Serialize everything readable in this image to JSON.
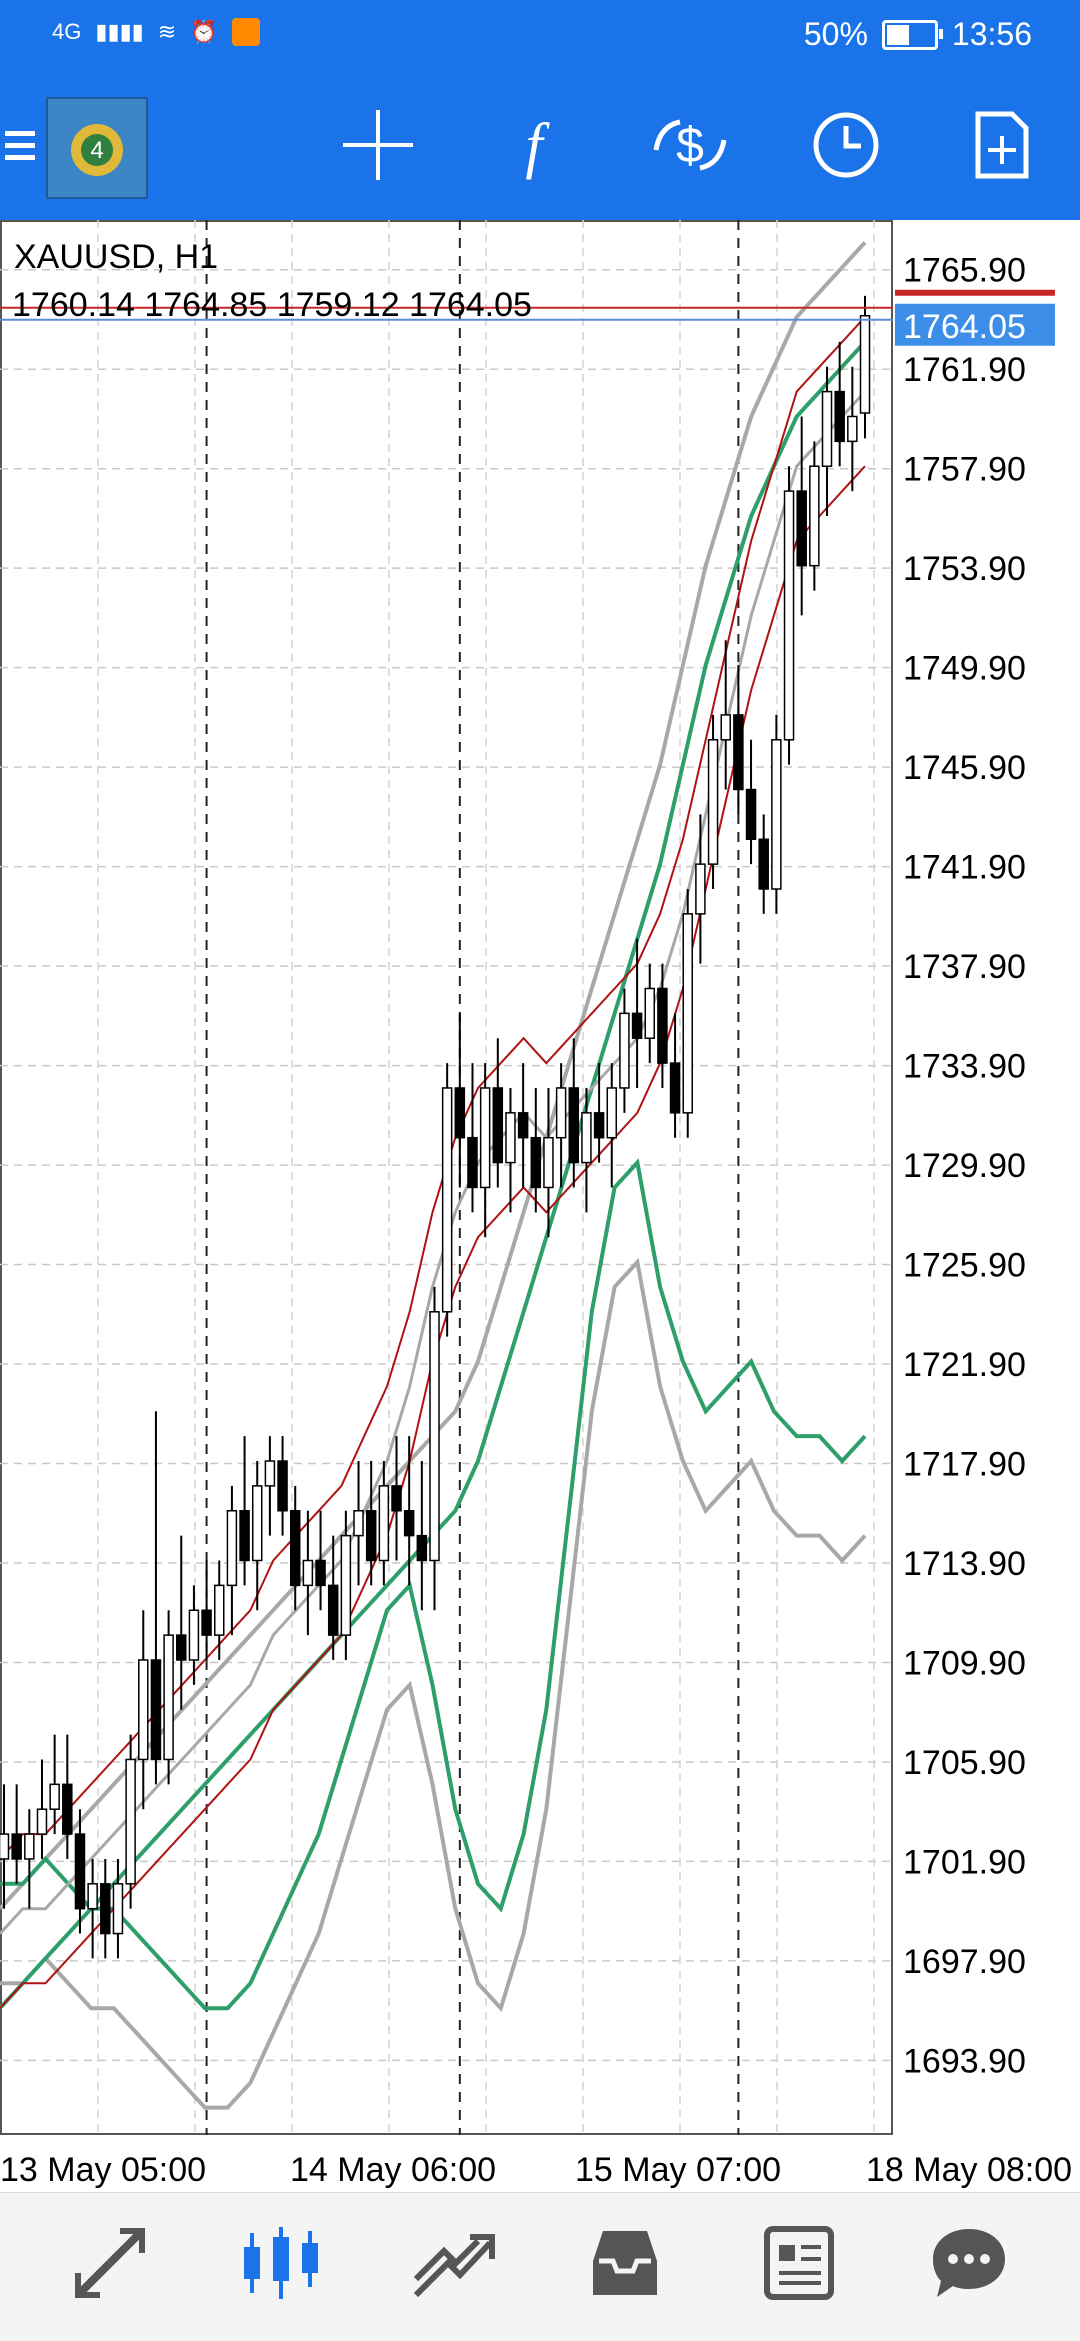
{
  "status_bar": {
    "network": "4G",
    "battery": "50%",
    "time": "13:56"
  },
  "chart": {
    "symbol": "XAUUSD, H1",
    "ohlc": "1760.14 1764.85 1759.12 1764.05",
    "current_price": "1764.05"
  },
  "colors": {
    "accent": "#1a73e8",
    "bollinger_outer": "#a8a8a8",
    "bollinger_inner": "#2e9e6b",
    "moving_average": "#b01212",
    "price_line": "#c62828",
    "bid_line": "#5a8fd8"
  },
  "toolbar_icons": [
    "menu-icon",
    "metatrader-logo",
    "crosshair-icon",
    "indicators-icon",
    "symbols-icon",
    "timeframe-icon",
    "new-order-icon"
  ],
  "nav_icons": [
    "quotes-icon",
    "chart-icon",
    "trade-icon",
    "history-icon",
    "news-icon",
    "chat-icon"
  ],
  "chart_data": {
    "type": "candlestick",
    "y_ticks": [
      "1765.90",
      "1761.90",
      "1757.90",
      "1753.90",
      "1749.90",
      "1745.90",
      "1741.90",
      "1737.90",
      "1733.90",
      "1729.90",
      "1725.90",
      "1721.90",
      "1717.90",
      "1713.90",
      "1709.90",
      "1705.90",
      "1701.90",
      "1697.90",
      "1693.90"
    ],
    "x_ticks": [
      "13 May 05:00",
      "14 May 06:00",
      "15 May 07:00",
      "18 May 08:00"
    ],
    "ylim": [
      1690.9,
      1767.9
    ],
    "grid": true,
    "separators": [
      "13 May 05:00",
      "14 May 06:00",
      "15 May 07:00"
    ],
    "last_price": 1764.05,
    "candles": [
      [
        1702,
        1705,
        1700,
        1703
      ],
      [
        1703,
        1705,
        1701,
        1702
      ],
      [
        1702,
        1704,
        1700,
        1703
      ],
      [
        1703,
        1706,
        1702,
        1704
      ],
      [
        1704,
        1707,
        1703,
        1705
      ],
      [
        1705,
        1707,
        1702,
        1703
      ],
      [
        1703,
        1704,
        1699,
        1700
      ],
      [
        1700,
        1702,
        1698,
        1701
      ],
      [
        1701,
        1702,
        1698,
        1699
      ],
      [
        1699,
        1702,
        1698,
        1701
      ],
      [
        1701,
        1707,
        1700,
        1706
      ],
      [
        1706,
        1712,
        1704,
        1710
      ],
      [
        1710,
        1720,
        1705,
        1706
      ],
      [
        1706,
        1712,
        1705,
        1711
      ],
      [
        1711,
        1715,
        1708,
        1710
      ],
      [
        1710,
        1713,
        1709,
        1712
      ],
      [
        1712,
        1714,
        1710,
        1711
      ],
      [
        1711,
        1714,
        1710,
        1713
      ],
      [
        1713,
        1717,
        1711,
        1716
      ],
      [
        1716,
        1719,
        1713,
        1714
      ],
      [
        1714,
        1718,
        1712,
        1717
      ],
      [
        1717,
        1719,
        1715,
        1718
      ],
      [
        1718,
        1719,
        1715,
        1716
      ],
      [
        1716,
        1717,
        1712,
        1713
      ],
      [
        1713,
        1716,
        1711,
        1714
      ],
      [
        1714,
        1716,
        1712,
        1713
      ],
      [
        1713,
        1715,
        1710,
        1711
      ],
      [
        1711,
        1716,
        1710,
        1715
      ],
      [
        1715,
        1718,
        1713,
        1716
      ],
      [
        1716,
        1718,
        1713,
        1714
      ],
      [
        1714,
        1718,
        1713,
        1717
      ],
      [
        1717,
        1719,
        1714,
        1716
      ],
      [
        1716,
        1719,
        1713,
        1715
      ],
      [
        1715,
        1718,
        1712,
        1714
      ],
      [
        1714,
        1725,
        1712,
        1724
      ],
      [
        1724,
        1734,
        1723,
        1733
      ],
      [
        1733,
        1736,
        1729,
        1731
      ],
      [
        1731,
        1734,
        1728,
        1729
      ],
      [
        1729,
        1734,
        1727,
        1733
      ],
      [
        1733,
        1735,
        1729,
        1730
      ],
      [
        1730,
        1733,
        1728,
        1732
      ],
      [
        1732,
        1734,
        1729,
        1731
      ],
      [
        1731,
        1733,
        1728,
        1729
      ],
      [
        1729,
        1733,
        1727,
        1731
      ],
      [
        1731,
        1734,
        1729,
        1733
      ],
      [
        1733,
        1735,
        1729,
        1730
      ],
      [
        1730,
        1733,
        1728,
        1732
      ],
      [
        1732,
        1734,
        1730,
        1731
      ],
      [
        1731,
        1734,
        1729,
        1733
      ],
      [
        1733,
        1737,
        1732,
        1736
      ],
      [
        1736,
        1739,
        1733,
        1735
      ],
      [
        1735,
        1738,
        1734,
        1737
      ],
      [
        1737,
        1738,
        1733,
        1734
      ],
      [
        1734,
        1736,
        1731,
        1732
      ],
      [
        1732,
        1741,
        1731,
        1740
      ],
      [
        1740,
        1744,
        1738,
        1742
      ],
      [
        1742,
        1748,
        1741,
        1747
      ],
      [
        1747,
        1751,
        1745,
        1748
      ],
      [
        1748,
        1750,
        1744,
        1745
      ],
      [
        1745,
        1747,
        1742,
        1743
      ],
      [
        1743,
        1744,
        1740,
        1741
      ],
      [
        1741,
        1748,
        1740,
        1747
      ],
      [
        1747,
        1758,
        1746,
        1757
      ],
      [
        1757,
        1760,
        1752,
        1754
      ],
      [
        1754,
        1759,
        1753,
        1758
      ],
      [
        1758,
        1762,
        1756,
        1761
      ],
      [
        1761,
        1763,
        1758,
        1759
      ],
      [
        1759,
        1762,
        1757,
        1760
      ],
      [
        1760.14,
        1764.85,
        1759.12,
        1764.05
      ]
    ],
    "series": [
      {
        "values": [
          1700,
          1701,
          1702,
          1703,
          1704,
          1705,
          1706,
          1707,
          1708,
          1709,
          1710,
          1711,
          1712,
          1713,
          1714,
          1715,
          1716,
          1717,
          1718,
          1719,
          1720,
          1722,
          1725,
          1728,
          1731,
          1734,
          1737,
          1740,
          1743,
          1746,
          1750,
          1754,
          1757,
          1760,
          1762,
          1764,
          1765,
          1766,
          1767
        ]
      },
      {
        "values": [
          1697,
          1697,
          1698,
          1697,
          1696,
          1696,
          1695,
          1694,
          1693,
          1692,
          1692,
          1693,
          1695,
          1697,
          1699,
          1702,
          1705,
          1708,
          1709,
          1705,
          1700,
          1697,
          1696,
          1699,
          1704,
          1712,
          1720,
          1725,
          1726,
          1721,
          1718,
          1716,
          1717,
          1718,
          1716,
          1715,
          1715,
          1714,
          1715
        ]
      },
      {
        "values": [
          1702,
          1703,
          1703,
          1704,
          1705,
          1706,
          1707,
          1708,
          1709,
          1710,
          1711,
          1712,
          1714,
          1715,
          1716,
          1717,
          1719,
          1721,
          1724,
          1728,
          1731,
          1733,
          1734,
          1735,
          1734,
          1735,
          1736,
          1737,
          1738,
          1740,
          1743,
          1747,
          1751,
          1755,
          1758,
          1761,
          1762,
          1763,
          1764
        ]
      }
    ]
  }
}
